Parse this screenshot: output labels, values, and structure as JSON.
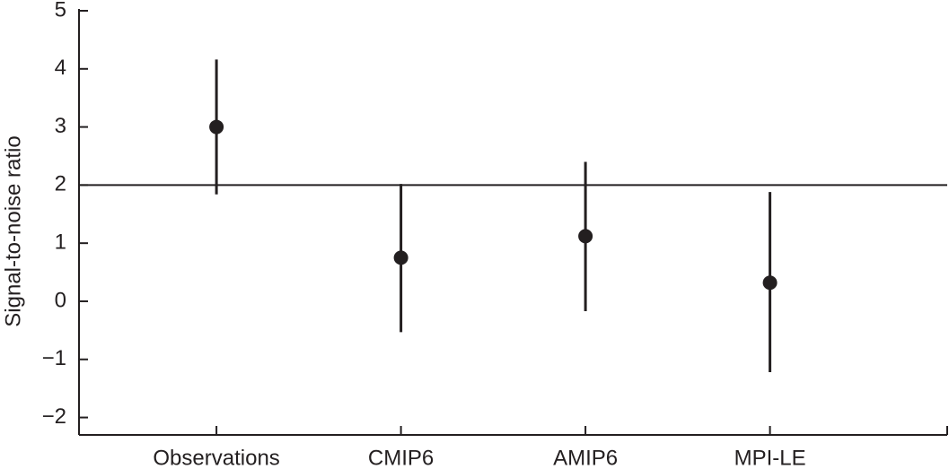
{
  "chart_data": {
    "type": "errorbar",
    "y_label": "Signal-to-noise ratio",
    "categories": [
      "Observations",
      "CMIP6",
      "AMIP6",
      "MPI-LE"
    ],
    "values": [
      3.0,
      0.75,
      1.12,
      0.32
    ],
    "lower": [
      1.84,
      -0.53,
      -0.17,
      -1.22
    ],
    "upper": [
      4.16,
      2.02,
      2.4,
      1.88
    ],
    "color": "#231f20",
    "hline": 2,
    "ylim": [
      -2.3,
      5
    ],
    "yticks": [
      {
        "value": -2,
        "label": "−2"
      },
      {
        "value": -1,
        "label": "−1"
      },
      0,
      1,
      2,
      3,
      4,
      5
    ]
  }
}
